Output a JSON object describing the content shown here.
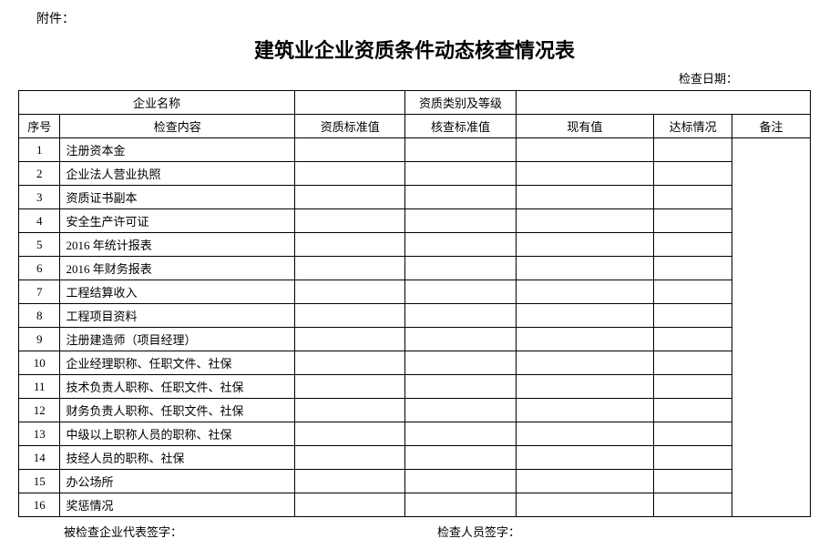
{
  "attachment_label": "附件：",
  "title": "建筑业企业资质条件动态核查情况表",
  "check_date_label": "检查日期：",
  "header": {
    "company_name_label": "企业名称",
    "qual_type_label": "资质类别及等级",
    "seq_label": "序号",
    "content_label": "检查内容",
    "std_value_label": "资质标准值",
    "check_value_label": "核查标准值",
    "current_value_label": "现有值",
    "status_label": "达标情况",
    "remark_label": "备注"
  },
  "rows": [
    {
      "seq": "1",
      "content": "注册资本金"
    },
    {
      "seq": "2",
      "content": "企业法人营业执照"
    },
    {
      "seq": "3",
      "content": "资质证书副本"
    },
    {
      "seq": "4",
      "content": "安全生产许可证"
    },
    {
      "seq": "5",
      "content": "2016 年统计报表"
    },
    {
      "seq": "6",
      "content": "2016 年财务报表"
    },
    {
      "seq": "7",
      "content": "工程结算收入"
    },
    {
      "seq": "8",
      "content": "工程项目资料"
    },
    {
      "seq": "9",
      "content": "注册建造师（项目经理）"
    },
    {
      "seq": "10",
      "content": "企业经理职称、任职文件、社保"
    },
    {
      "seq": "11",
      "content": "技术负责人职称、任职文件、社保"
    },
    {
      "seq": "12",
      "content": "财务负责人职称、任职文件、社保"
    },
    {
      "seq": "13",
      "content": "中级以上职称人员的职称、社保"
    },
    {
      "seq": "14",
      "content": "技经人员的职称、社保"
    },
    {
      "seq": "15",
      "content": "办公场所"
    },
    {
      "seq": "16",
      "content": "奖惩情况"
    }
  ],
  "footer": {
    "sig1": "被检查企业代表签字：",
    "sig2": "检查人员签字："
  }
}
